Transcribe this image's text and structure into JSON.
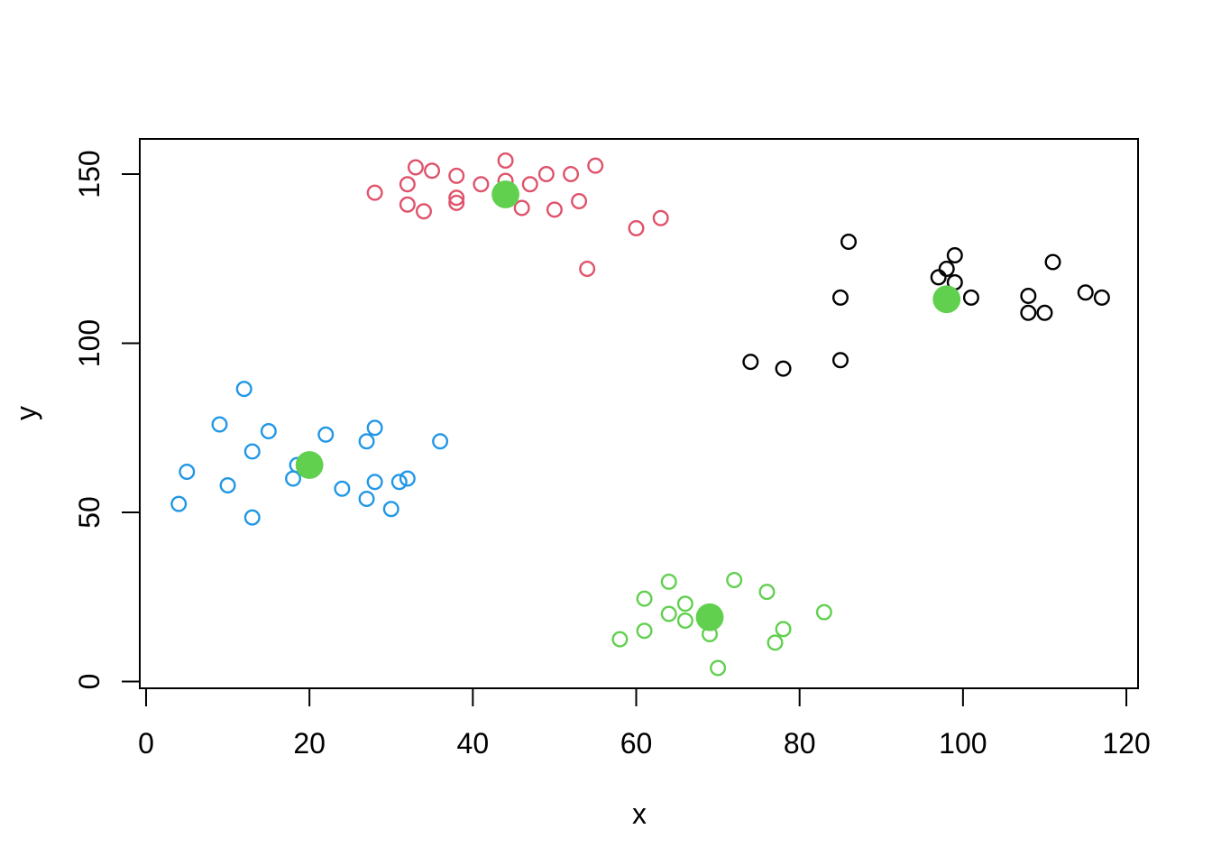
{
  "chart_data": {
    "type": "scatter",
    "title": "",
    "xlabel": "x",
    "ylabel": "y",
    "grid": false,
    "legend": "none",
    "x_axis": {
      "ticks": [
        0,
        20,
        40,
        60,
        80,
        100,
        120
      ],
      "range": [
        -0.77,
        121.43
      ]
    },
    "y_axis": {
      "ticks": [
        0,
        50,
        100,
        150
      ],
      "range": [
        -2.0,
        160.4
      ]
    },
    "marker_style": {
      "point_shape": "open-circle",
      "center_shape": "filled-circle"
    },
    "colors": {
      "cluster_red": "#DF536B",
      "cluster_black": "#000000",
      "cluster_blue": "#2297E6",
      "cluster_green": "#61D04F",
      "centers": "#61D04F",
      "axis": "#000000"
    },
    "series": [
      {
        "name": "cluster-red",
        "color": "#DF536B",
        "marker": "open-circle",
        "points": [
          [
            28,
            144.5
          ],
          [
            32,
            147
          ],
          [
            33,
            152
          ],
          [
            35,
            151
          ],
          [
            32,
            141
          ],
          [
            34,
            139
          ],
          [
            38,
            149.5
          ],
          [
            38,
            143
          ],
          [
            38,
            141.5
          ],
          [
            41,
            147
          ],
          [
            44,
            154
          ],
          [
            44,
            148
          ],
          [
            46,
            140
          ],
          [
            47,
            147
          ],
          [
            49,
            150
          ],
          [
            50,
            139.5
          ],
          [
            52,
            150
          ],
          [
            53,
            142
          ],
          [
            55,
            152.5
          ],
          [
            60,
            134
          ],
          [
            63,
            137
          ],
          [
            54,
            122
          ]
        ]
      },
      {
        "name": "cluster-black",
        "color": "#000000",
        "marker": "open-circle",
        "points": [
          [
            86,
            130
          ],
          [
            99,
            126
          ],
          [
            98,
            122
          ],
          [
            97,
            119.5
          ],
          [
            99,
            118
          ],
          [
            101,
            113.5
          ],
          [
            85,
            113.5
          ],
          [
            111,
            124
          ],
          [
            108,
            114
          ],
          [
            108,
            109
          ],
          [
            110,
            109
          ],
          [
            115,
            115
          ],
          [
            117,
            113.5
          ],
          [
            74,
            94.5
          ],
          [
            78,
            92.5
          ],
          [
            85,
            95
          ]
        ]
      },
      {
        "name": "cluster-blue",
        "color": "#2297E6",
        "marker": "open-circle",
        "points": [
          [
            12,
            86.5
          ],
          [
            9,
            76
          ],
          [
            15,
            74
          ],
          [
            13,
            68
          ],
          [
            22,
            73
          ],
          [
            28,
            75
          ],
          [
            27,
            71
          ],
          [
            36,
            71
          ],
          [
            5,
            62
          ],
          [
            18.5,
            64
          ],
          [
            18,
            60
          ],
          [
            10,
            58
          ],
          [
            24,
            57
          ],
          [
            28,
            59
          ],
          [
            27,
            54
          ],
          [
            31,
            59
          ],
          [
            32,
            60
          ],
          [
            30,
            51
          ],
          [
            4,
            52.5
          ],
          [
            13,
            48.5
          ]
        ]
      },
      {
        "name": "cluster-green",
        "color": "#61D04F",
        "marker": "open-circle",
        "points": [
          [
            64,
            29.5
          ],
          [
            72,
            30
          ],
          [
            76,
            26.5
          ],
          [
            61,
            24.5
          ],
          [
            66,
            23
          ],
          [
            64,
            20
          ],
          [
            66,
            18
          ],
          [
            69,
            14
          ],
          [
            83,
            20.5
          ],
          [
            78,
            15.5
          ],
          [
            77,
            11.5
          ],
          [
            61,
            15
          ],
          [
            58,
            12.5
          ],
          [
            70,
            4
          ]
        ]
      },
      {
        "name": "cluster-centers",
        "color": "#61D04F",
        "marker": "filled-circle",
        "points": [
          [
            44,
            144
          ],
          [
            98,
            113
          ],
          [
            20,
            64
          ],
          [
            69,
            19
          ]
        ]
      }
    ]
  }
}
